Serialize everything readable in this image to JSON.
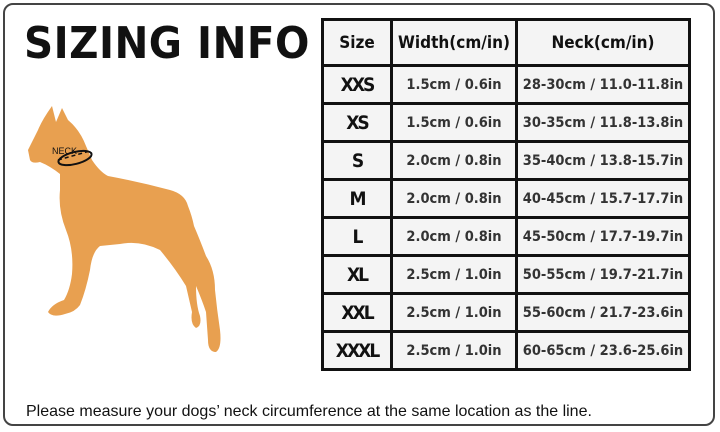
{
  "title": "SIZING INFO",
  "figure": {
    "label": "NECK",
    "fill_color": "#E8A050"
  },
  "table": {
    "headers": [
      "Size",
      "Width(cm/in)",
      "Neck(cm/in)"
    ],
    "rows": [
      [
        "XXS",
        "1.5cm / 0.6in",
        "28-30cm / 11.0-11.8in"
      ],
      [
        "XS",
        "1.5cm / 0.6in",
        "30-35cm / 11.8-13.8in"
      ],
      [
        "S",
        "2.0cm / 0.8in",
        "35-40cm / 13.8-15.7in"
      ],
      [
        "M",
        "2.0cm / 0.8in",
        "40-45cm / 15.7-17.7in"
      ],
      [
        "L",
        "2.0cm / 0.8in",
        "45-50cm / 17.7-19.7in"
      ],
      [
        "XL",
        "2.5cm / 1.0in",
        "50-55cm / 19.7-21.7in"
      ],
      [
        "XXL",
        "2.5cm / 1.0in",
        "55-60cm / 21.7-23.6in"
      ],
      [
        "XXXL",
        "2.5cm / 1.0in",
        "60-65cm / 23.6-25.6in"
      ]
    ]
  },
  "note": "Please measure your dogs’  neck circumference at the same location as the line."
}
